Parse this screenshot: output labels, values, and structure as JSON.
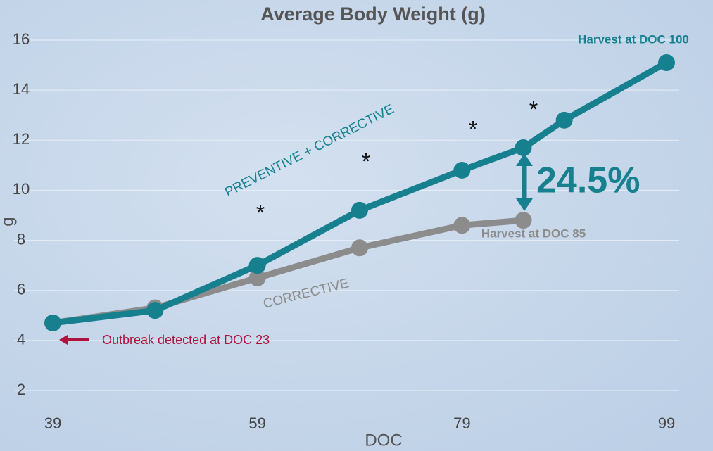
{
  "chart_data": {
    "type": "line",
    "title": "Average Body Weight (g)",
    "x_label": "DOC",
    "y_label": "g",
    "xlim": [
      39,
      99
    ],
    "xticks": [
      39,
      59,
      79,
      99
    ],
    "ylim": [
      2,
      16
    ],
    "yticks": [
      2,
      4,
      6,
      8,
      10,
      12,
      14,
      16
    ],
    "grid": true,
    "series": [
      {
        "name": "PREVENTIVE + CORRECTIVE",
        "color": "#16808f",
        "x": [
          39,
          49,
          59,
          69,
          79,
          85,
          89,
          99
        ],
        "values": [
          4.7,
          5.2,
          7.0,
          9.2,
          10.8,
          11.7,
          12.8,
          15.1
        ]
      },
      {
        "name": "CORRECTIVE",
        "color": "#8c8c8c",
        "x": [
          39,
          49,
          59,
          69,
          79,
          85
        ],
        "values": [
          4.7,
          5.3,
          6.5,
          7.7,
          8.6,
          8.8
        ]
      }
    ],
    "annotations": [
      "Harvest at DOC 100",
      "Harvest at DOC 85",
      "Outbreak detected at DOC 23",
      "24.5%",
      "*",
      "*",
      "*",
      "*"
    ]
  }
}
